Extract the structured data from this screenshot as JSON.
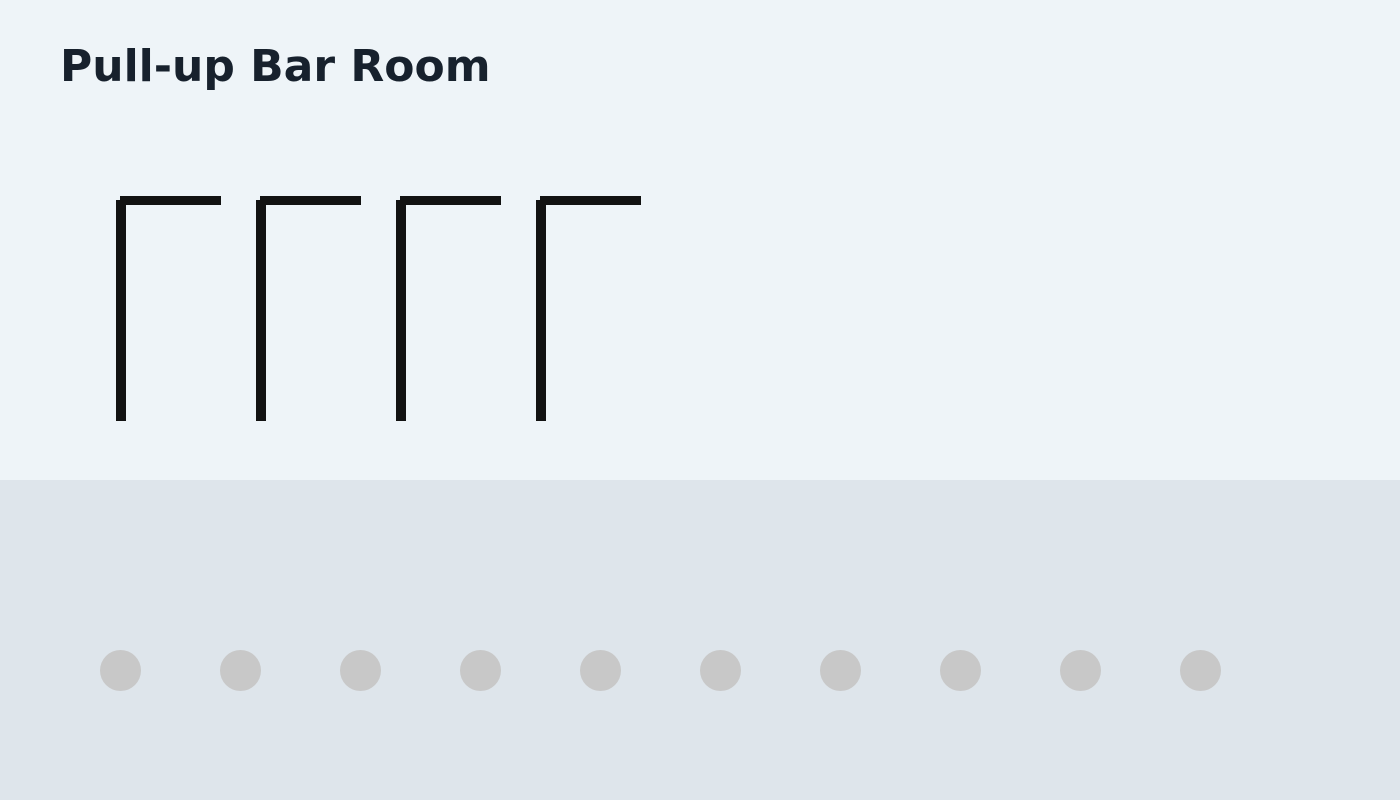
{
  "title": "Pull-up Bar Room",
  "colors": {
    "upper_background": "#eef4f8",
    "lower_background": "#dee5eb",
    "title_text": "#17212d",
    "bar": "#121212",
    "slot": "#c8c8c8"
  },
  "bars": [
    {
      "name": "pull-up-bar-1"
    },
    {
      "name": "pull-up-bar-2"
    },
    {
      "name": "pull-up-bar-3"
    },
    {
      "name": "pull-up-bar-4"
    }
  ],
  "slots": [
    {
      "name": "slot-1"
    },
    {
      "name": "slot-2"
    },
    {
      "name": "slot-3"
    },
    {
      "name": "slot-4"
    },
    {
      "name": "slot-5"
    },
    {
      "name": "slot-6"
    },
    {
      "name": "slot-7"
    },
    {
      "name": "slot-8"
    },
    {
      "name": "slot-9"
    },
    {
      "name": "slot-10"
    }
  ]
}
